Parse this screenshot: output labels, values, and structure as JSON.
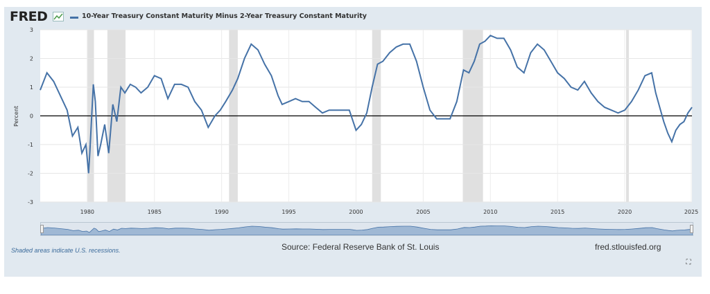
{
  "header": {
    "logo_text": "FRED",
    "legend_label": "10-Year Treasury Constant Maturity Minus 2-Year Treasury Constant Maturity"
  },
  "footer": {
    "recession_note": "Shaded areas indicate U.S. recessions.",
    "source": "Source: Federal Reserve Bank of St. Louis",
    "site": "fred.stlouisfed.org"
  },
  "icons": [
    "chart-icon",
    "expand-icon"
  ],
  "colors": {
    "series": "#4572a7",
    "recession": "#e0e0e0",
    "zero_line": "#000000",
    "background": "#e1e9f0"
  },
  "chart_data": {
    "type": "line",
    "title": "",
    "xlabel": "",
    "ylabel": "Percent",
    "xlim": [
      1976.5,
      2025.0
    ],
    "ylim": [
      -3,
      3
    ],
    "y_ticks": [
      "-3",
      "-2",
      "-1",
      "0",
      "1",
      "2",
      "3"
    ],
    "x_ticks": [
      "1980",
      "1985",
      "1990",
      "1995",
      "2000",
      "2005",
      "2010",
      "2015",
      "2020",
      "2025"
    ],
    "grid": true,
    "legend_position": "top",
    "recessions": [
      [
        1980.0,
        1980.5
      ],
      [
        1981.5,
        1982.85
      ],
      [
        1990.55,
        1991.2
      ],
      [
        2001.2,
        2001.85
      ],
      [
        2007.95,
        2009.45
      ],
      [
        2020.1,
        2020.3
      ]
    ],
    "series": [
      {
        "name": "10-Year Treasury Constant Maturity Minus 2-Year Treasury Constant Maturity",
        "x": [
          1976.5,
          1977.0,
          1977.5,
          1978.0,
          1978.5,
          1978.9,
          1979.3,
          1979.6,
          1979.9,
          1980.1,
          1980.2,
          1980.45,
          1980.6,
          1980.8,
          1981.0,
          1981.3,
          1981.6,
          1981.9,
          1982.2,
          1982.5,
          1982.8,
          1983.2,
          1983.6,
          1984.0,
          1984.5,
          1985.0,
          1985.5,
          1986.0,
          1986.5,
          1987.0,
          1987.5,
          1988.0,
          1988.5,
          1989.0,
          1989.5,
          1989.9,
          1990.3,
          1990.8,
          1991.2,
          1991.7,
          1992.2,
          1992.7,
          1993.2,
          1993.7,
          1994.2,
          1994.5,
          1995.0,
          1995.5,
          1996.0,
          1996.5,
          1997.0,
          1997.5,
          1998.0,
          1998.5,
          1999.0,
          1999.5,
          2000.0,
          2000.4,
          2000.8,
          2001.2,
          2001.6,
          2002.0,
          2002.5,
          2003.0,
          2003.5,
          2004.0,
          2004.5,
          2005.0,
          2005.5,
          2006.0,
          2006.5,
          2007.0,
          2007.5,
          2008.0,
          2008.4,
          2008.8,
          2009.2,
          2009.6,
          2010.0,
          2010.5,
          2011.0,
          2011.5,
          2012.0,
          2012.5,
          2013.0,
          2013.5,
          2014.0,
          2014.5,
          2015.0,
          2015.5,
          2016.0,
          2016.5,
          2017.0,
          2017.5,
          2018.0,
          2018.5,
          2019.0,
          2019.5,
          2020.0,
          2020.5,
          2021.0,
          2021.5,
          2022.0,
          2022.3,
          2022.6,
          2022.9,
          2023.2,
          2023.5,
          2023.8,
          2024.1,
          2024.4,
          2024.7,
          2025.0
        ],
        "y": [
          0.9,
          1.5,
          1.2,
          0.7,
          0.2,
          -0.7,
          -0.4,
          -1.3,
          -1.0,
          -2.0,
          -1.2,
          1.1,
          0.5,
          -1.4,
          -1.0,
          -0.3,
          -1.3,
          0.4,
          -0.2,
          1.0,
          0.8,
          1.1,
          1.0,
          0.8,
          1.0,
          1.4,
          1.3,
          0.6,
          1.1,
          1.1,
          1.0,
          0.5,
          0.2,
          -0.4,
          0.0,
          0.2,
          0.5,
          0.9,
          1.3,
          2.0,
          2.5,
          2.3,
          1.8,
          1.4,
          0.7,
          0.4,
          0.5,
          0.6,
          0.5,
          0.5,
          0.3,
          0.1,
          0.2,
          0.2,
          0.2,
          0.2,
          -0.5,
          -0.3,
          0.1,
          1.0,
          1.8,
          1.9,
          2.2,
          2.4,
          2.5,
          2.5,
          1.9,
          1.0,
          0.2,
          -0.1,
          -0.1,
          -0.1,
          0.5,
          1.6,
          1.5,
          1.9,
          2.5,
          2.6,
          2.8,
          2.7,
          2.7,
          2.3,
          1.7,
          1.5,
          2.2,
          2.5,
          2.3,
          1.9,
          1.5,
          1.3,
          1.0,
          0.9,
          1.2,
          0.8,
          0.5,
          0.3,
          0.2,
          0.1,
          0.2,
          0.5,
          0.9,
          1.4,
          1.5,
          0.8,
          0.3,
          -0.2,
          -0.6,
          -0.9,
          -0.5,
          -0.3,
          -0.2,
          0.1,
          0.3
        ]
      }
    ]
  }
}
